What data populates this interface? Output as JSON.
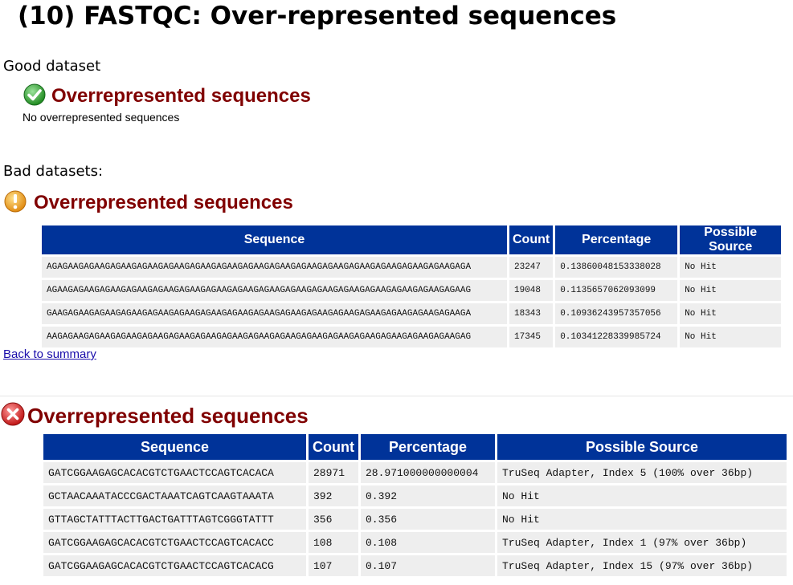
{
  "title": "(10) FASTQC: Over-represented sequences",
  "good": {
    "label": "Good dataset",
    "heading": "Overrepresented sequences",
    "note": "No overrepresented sequences",
    "icon": "check-icon"
  },
  "bad": {
    "label": "Bad datasets:",
    "warn": {
      "heading": "Overrepresented sequences",
      "icon": "warning-icon",
      "headers": [
        "Sequence",
        "Count",
        "Percentage",
        "Possible Source"
      ],
      "rows": [
        [
          "AGAGAAGAGAAGAGAAGAGAAGAGAAGAGAAGAGAAGAGAAGAGAAGAGAAGAGAAGAGAAGAGAAGAGAAGAGAAGAGA",
          "23247",
          "0.13860048153338028",
          "No Hit"
        ],
        [
          "AGAAGAGAAGAGAAGAGAAGAGAAGAGAAGAGAAGAGAAGAGAAGAGAAGAGAAGAGAAGAGAAGAGAAGAGAAGAGAAG",
          "19048",
          "0.1135657062093099",
          "No Hit"
        ],
        [
          "GAAGAGAAGAGAAGAGAAGAGAAGAGAAGAGAAGAGAAGAGAAGAGAAGAGAAGAGAAGAGAAGAGAAGAGAAGAGAAGA",
          "18343",
          "0.10936243957357056",
          "No Hit"
        ],
        [
          "AAGAGAAGAGAAGAGAAGAGAAGAGAAGAGAAGAGAAGAGAAGAGAAGAGAAGAGAAGAGAAGAGAAGAGAAGAGAAGAG",
          "17345",
          "0.10341228339985724",
          "No Hit"
        ]
      ],
      "back_link": "Back to summary"
    },
    "fail": {
      "heading": "Overrepresented sequences",
      "icon": "error-icon",
      "headers": [
        "Sequence",
        "Count",
        "Percentage",
        "Possible Source"
      ],
      "rows": [
        [
          "GATCGGAAGAGCACACGTCTGAACTCCAGTCACACA",
          "28971",
          "28.971000000000004",
          "TruSeq Adapter, Index 5 (100% over 36bp)"
        ],
        [
          "GCTAACAAATACCCGACTAAATCAGTCAAGTAAATA",
          "392",
          "0.392",
          "No Hit"
        ],
        [
          "GTTAGCTATTTACTTGACTGATTTAGTCGGGTATTT",
          "356",
          "0.356",
          "No Hit"
        ],
        [
          "GATCGGAAGAGCACACGTCTGAACTCCAGTCACACC",
          "108",
          "0.108",
          "TruSeq Adapter, Index 1 (97% over 36bp)"
        ],
        [
          "GATCGGAAGAGCACACGTCTGAACTCCAGTCACACG",
          "107",
          "0.107",
          "TruSeq Adapter, Index 15 (97% over 36bp)"
        ]
      ]
    }
  },
  "colors": {
    "header_bg": "#003399",
    "cell_bg": "#eeeeee",
    "heading": "#800000",
    "pass": "#2e9e2e",
    "warn": "#f0a020",
    "fail": "#d42020"
  }
}
